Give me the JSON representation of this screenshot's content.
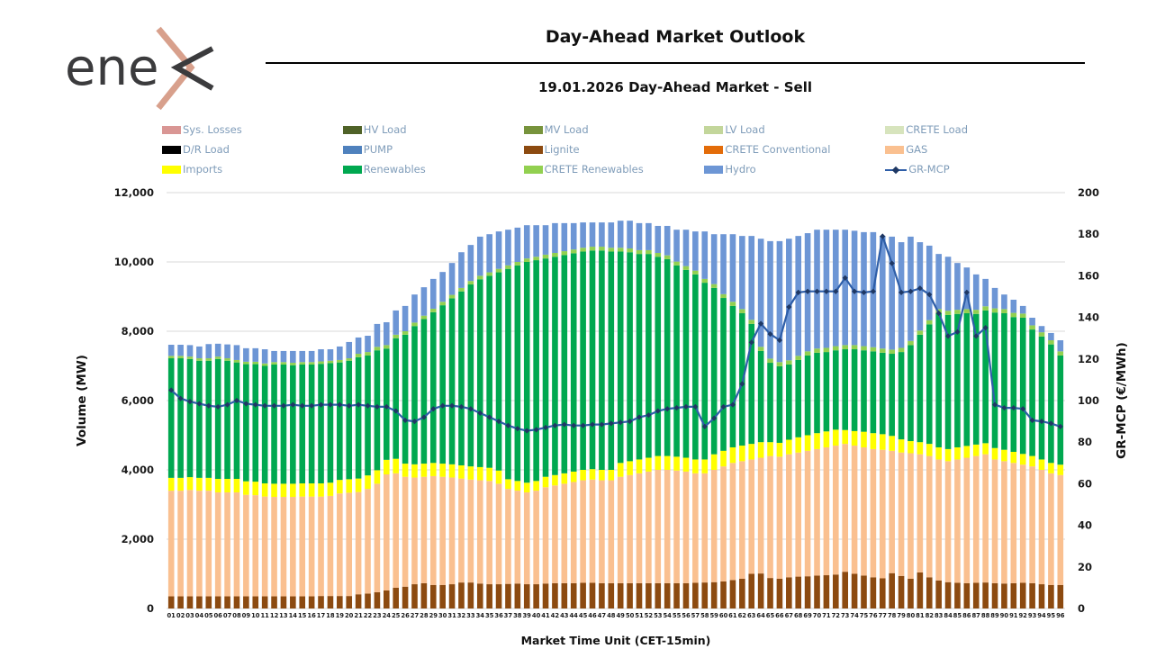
{
  "logo": {
    "text": "ene",
    "accent_color": "#d8a08c",
    "text_color": "#3b3b3d"
  },
  "header": {
    "title": "Day-Ahead Market Outlook",
    "subtitle": "19.01.2026  Day-Ahead Market - Sell"
  },
  "legend": [
    {
      "label": "Sys. Losses",
      "color": "#d99694",
      "marker": "box"
    },
    {
      "label": "HV Load",
      "color": "#4f6228",
      "marker": "box"
    },
    {
      "label": "MV Load",
      "color": "#77933c",
      "marker": "box"
    },
    {
      "label": "LV Load",
      "color": "#c3d69b",
      "marker": "box"
    },
    {
      "label": "CRETE Load",
      "color": "#d7e4bd",
      "marker": "box"
    },
    {
      "label": "D/R Load",
      "color": "#000000",
      "marker": "box"
    },
    {
      "label": "PUMP",
      "color": "#4f81bd",
      "marker": "box"
    },
    {
      "label": "Lignite",
      "color": "#8c4a10",
      "marker": "box"
    },
    {
      "label": "CRETE Conventional",
      "color": "#e36c09",
      "marker": "box"
    },
    {
      "label": "GAS",
      "color": "#fac090",
      "marker": "box"
    },
    {
      "label": "Imports",
      "color": "#ffff00",
      "marker": "box"
    },
    {
      "label": "Renewables",
      "color": "#00a850",
      "marker": "box"
    },
    {
      "label": "CRETE Renewables",
      "color": "#92d050",
      "marker": "box"
    },
    {
      "label": "Hydro",
      "color": "#6d96d5",
      "marker": "box"
    },
    {
      "label": "GR-MCP",
      "color": "#2e5ea8",
      "marker": "line",
      "marker_color": "#1f3864"
    }
  ],
  "chart_data": {
    "type": "bar",
    "subtype": "stacked-bars-with-line",
    "grid": true,
    "xlabel": "Market Time Unit (CET-15min)",
    "y_left": {
      "title": "Volume (MW)",
      "min": 0,
      "max": 12000,
      "tick_values": [
        0,
        2000,
        4000,
        6000,
        8000,
        10000,
        12000
      ],
      "tick_labels": [
        "0",
        "2,000",
        "4,000",
        "6,000",
        "8,000",
        "10,000",
        "12,000"
      ]
    },
    "y_right": {
      "title": "GR-MCP (€/MWh)",
      "min": 0,
      "max": 200,
      "tick_values": [
        0,
        20,
        40,
        60,
        80,
        100,
        120,
        140,
        160,
        180,
        200
      ],
      "tick_labels": [
        "0",
        "20",
        "40",
        "60",
        "80",
        "100",
        "120",
        "140",
        "160",
        "180",
        "200"
      ]
    },
    "categories": [
      "01",
      "02",
      "03",
      "04",
      "05",
      "06",
      "07",
      "08",
      "09",
      "10",
      "11",
      "12",
      "13",
      "14",
      "15",
      "16",
      "17",
      "18",
      "19",
      "20",
      "21",
      "22",
      "23",
      "24",
      "25",
      "26",
      "27",
      "28",
      "29",
      "30",
      "31",
      "32",
      "33",
      "34",
      "35",
      "36",
      "37",
      "38",
      "39",
      "40",
      "41",
      "42",
      "43",
      "44",
      "45",
      "46",
      "47",
      "48",
      "49",
      "50",
      "51",
      "52",
      "53",
      "54",
      "55",
      "56",
      "57",
      "58",
      "59",
      "60",
      "61",
      "62",
      "63",
      "64",
      "65",
      "66",
      "67",
      "68",
      "69",
      "70",
      "71",
      "72",
      "73",
      "74",
      "75",
      "76",
      "77",
      "78",
      "79",
      "80",
      "81",
      "82",
      "83",
      "84",
      "85",
      "86",
      "87",
      "88",
      "89",
      "90",
      "91",
      "92",
      "93",
      "94",
      "95",
      "96"
    ],
    "series": [
      {
        "name": "Lignite",
        "color": "#8c4a10",
        "values": [
          350,
          350,
          350,
          350,
          350,
          350,
          350,
          350,
          350,
          350,
          350,
          350,
          350,
          350,
          350,
          350,
          360,
          360,
          360,
          360,
          410,
          430,
          470,
          520,
          600,
          630,
          700,
          730,
          680,
          680,
          700,
          750,
          750,
          720,
          700,
          700,
          710,
          720,
          700,
          700,
          720,
          730,
          730,
          730,
          740,
          740,
          730,
          730,
          730,
          730,
          730,
          730,
          730,
          730,
          730,
          730,
          740,
          750,
          760,
          780,
          820,
          860,
          1000,
          1010,
          880,
          860,
          900,
          920,
          930,
          950,
          960,
          980,
          1060,
          1000,
          950,
          900,
          870,
          1020,
          940,
          860,
          1040,
          900,
          810,
          760,
          740,
          730,
          740,
          750,
          730,
          720,
          730,
          740,
          730,
          700,
          680,
          680
        ]
      },
      {
        "name": "GAS",
        "color": "#fac090",
        "values": [
          3050,
          3050,
          3070,
          3050,
          3050,
          3000,
          3000,
          3000,
          2930,
          2920,
          2880,
          2870,
          2870,
          2870,
          2880,
          2880,
          2870,
          2890,
          2960,
          2980,
          2950,
          3020,
          3130,
          3350,
          3300,
          3170,
          3080,
          3070,
          3140,
          3120,
          3080,
          3000,
          2970,
          2980,
          2980,
          2900,
          2740,
          2680,
          2650,
          2700,
          2780,
          2820,
          2870,
          2920,
          2960,
          2980,
          2970,
          2970,
          3070,
          3120,
          3170,
          3220,
          3270,
          3270,
          3250,
          3220,
          3160,
          3150,
          3240,
          3320,
          3380,
          3390,
          3300,
          3340,
          3520,
          3520,
          3550,
          3580,
          3620,
          3650,
          3690,
          3720,
          3690,
          3700,
          3700,
          3700,
          3710,
          3530,
          3560,
          3620,
          3410,
          3500,
          3490,
          3490,
          3560,
          3620,
          3660,
          3700,
          3570,
          3530,
          3470,
          3410,
          3370,
          3300,
          3220,
          3170
        ]
      },
      {
        "name": "Imports",
        "color": "#ffff00",
        "values": [
          370,
          370,
          370,
          370,
          370,
          390,
          390,
          390,
          390,
          390,
          380,
          380,
          380,
          380,
          380,
          380,
          380,
          380,
          390,
          390,
          390,
          390,
          390,
          420,
          420,
          380,
          380,
          380,
          380,
          380,
          380,
          380,
          380,
          380,
          380,
          380,
          280,
          280,
          280,
          280,
          300,
          300,
          300,
          300,
          300,
          300,
          300,
          300,
          400,
          400,
          400,
          400,
          400,
          400,
          400,
          400,
          400,
          400,
          450,
          450,
          450,
          450,
          450,
          450,
          400,
          400,
          420,
          440,
          450,
          460,
          460,
          460,
          400,
          420,
          450,
          460,
          450,
          430,
          380,
          350,
          350,
          350,
          350,
          350,
          350,
          340,
          330,
          320,
          330,
          330,
          320,
          310,
          300,
          300,
          300,
          300
        ]
      },
      {
        "name": "Renewables",
        "color": "#00a850",
        "values": [
          3450,
          3450,
          3410,
          3380,
          3380,
          3460,
          3410,
          3360,
          3380,
          3390,
          3390,
          3440,
          3440,
          3420,
          3430,
          3430,
          3450,
          3450,
          3390,
          3420,
          3500,
          3460,
          3460,
          3210,
          3480,
          3720,
          3990,
          4170,
          4350,
          4570,
          4790,
          5020,
          5250,
          5420,
          5540,
          5720,
          6070,
          6220,
          6370,
          6370,
          6300,
          6300,
          6300,
          6300,
          6300,
          6310,
          6330,
          6300,
          6100,
          6030,
          5930,
          5880,
          5750,
          5680,
          5520,
          5420,
          5340,
          5100,
          4800,
          4410,
          4080,
          3820,
          3460,
          2630,
          2290,
          2210,
          2170,
          2230,
          2300,
          2320,
          2290,
          2290,
          2330,
          2360,
          2350,
          2360,
          2350,
          2370,
          2520,
          2770,
          3100,
          3450,
          3870,
          3870,
          3850,
          3830,
          3770,
          3830,
          3910,
          3940,
          3890,
          3930,
          3650,
          3550,
          3420,
          3150
        ]
      },
      {
        "name": "CRETE Renewables",
        "color": "#92d050",
        "values": [
          70,
          70,
          70,
          70,
          70,
          70,
          70,
          70,
          70,
          70,
          70,
          70,
          70,
          70,
          70,
          70,
          70,
          70,
          70,
          70,
          100,
          100,
          100,
          100,
          100,
          100,
          100,
          100,
          100,
          100,
          100,
          100,
          100,
          100,
          100,
          100,
          100,
          100,
          100,
          100,
          110,
          110,
          110,
          110,
          110,
          110,
          110,
          110,
          110,
          110,
          110,
          110,
          110,
          110,
          110,
          110,
          110,
          110,
          110,
          110,
          120,
          120,
          120,
          120,
          120,
          120,
          120,
          120,
          120,
          120,
          120,
          120,
          120,
          120,
          120,
          120,
          120,
          120,
          120,
          120,
          120,
          120,
          120,
          120,
          120,
          120,
          120,
          120,
          120,
          120,
          120,
          120,
          120,
          120,
          120,
          120
        ]
      },
      {
        "name": "Hydro",
        "color": "#6d96d5",
        "values": [
          320,
          320,
          330,
          340,
          410,
          370,
          400,
          430,
          390,
          390,
          410,
          320,
          320,
          340,
          320,
          320,
          350,
          330,
          390,
          470,
          470,
          470,
          660,
          660,
          700,
          730,
          810,
          820,
          860,
          860,
          920,
          1030,
          1040,
          1130,
          1100,
          1080,
          1030,
          990,
          960,
          910,
          850,
          860,
          810,
          760,
          730,
          700,
          700,
          730,
          780,
          800,
          780,
          780,
          780,
          850,
          920,
          1050,
          1130,
          1370,
          1440,
          1730,
          1950,
          2110,
          2420,
          3120,
          3390,
          3490,
          3510,
          3460,
          3410,
          3430,
          3410,
          3360,
          3330,
          3300,
          3290,
          3320,
          3250,
          3260,
          3050,
          3010,
          2550,
          2150,
          1590,
          1560,
          1350,
          1200,
          1020,
          790,
          590,
          420,
          380,
          220,
          220,
          180,
          210,
          320
        ]
      }
    ],
    "line_series": {
      "name": "GR-MCP",
      "axis": "right",
      "color": "#2e5ea8",
      "marker_color": "#1f3864",
      "values": [
        105,
        101,
        99.5,
        98.5,
        97.5,
        97,
        98,
        100,
        98.5,
        98,
        97.5,
        97.5,
        97.5,
        98,
        97.5,
        97.5,
        98,
        98,
        98,
        97.5,
        98,
        97.5,
        97,
        97,
        95,
        90.5,
        90,
        92,
        96,
        97.5,
        97.5,
        97,
        96,
        94,
        92,
        90,
        88,
        86.5,
        85.5,
        86,
        87,
        88,
        88.5,
        88,
        88,
        88.5,
        88.5,
        89,
        89.5,
        90,
        92,
        93,
        95,
        96,
        96.5,
        97,
        97,
        87.5,
        91.5,
        97,
        98,
        108,
        128,
        137,
        132,
        129,
        145,
        152,
        152.5,
        152.5,
        152.5,
        152.5,
        159,
        152.5,
        152,
        152.5,
        179,
        166,
        152,
        152.5,
        154,
        151,
        142,
        131,
        133,
        152,
        131,
        135,
        98,
        96.5,
        96.5,
        96,
        90.5,
        90,
        89,
        87.5
      ]
    }
  }
}
